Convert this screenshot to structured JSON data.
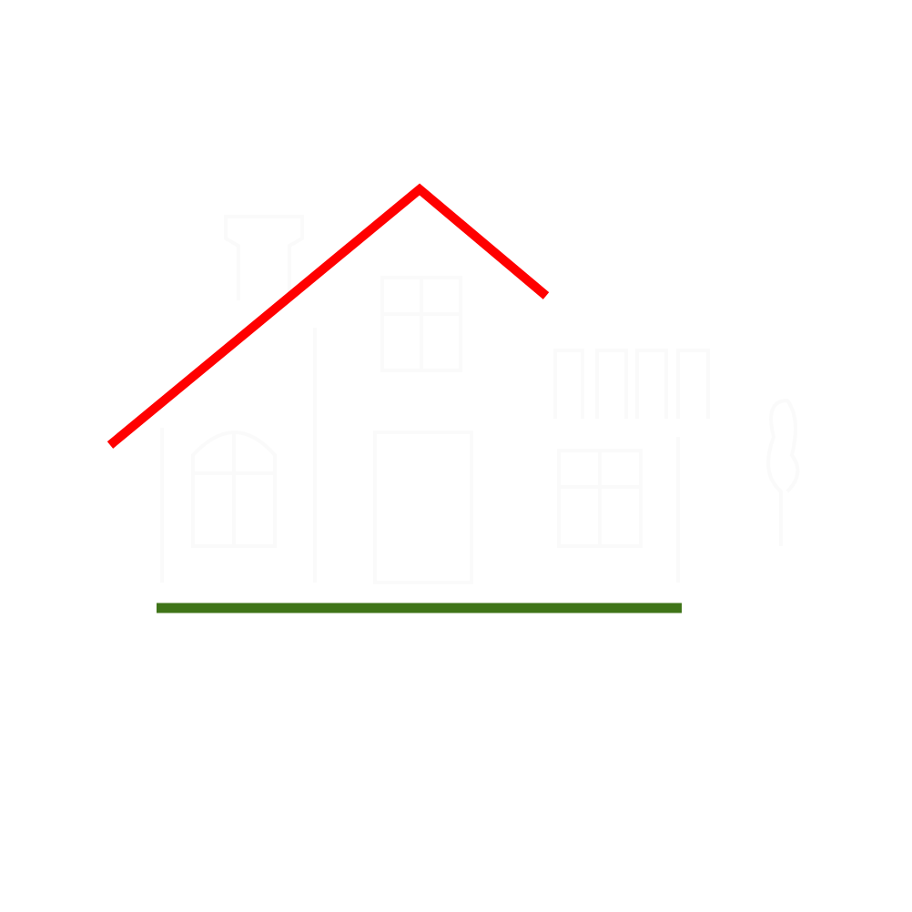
{
  "colors": {
    "background": "#ffffff",
    "roof": "#ff0000",
    "ground": "#3f7418",
    "faint_outline": "#fafafa"
  },
  "icons": {
    "roof": "roof-line-icon",
    "ground": "ground-line-icon"
  }
}
